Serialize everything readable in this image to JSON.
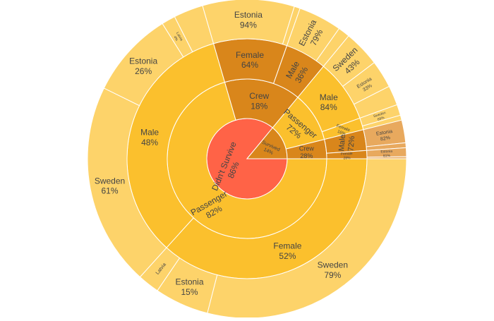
{
  "chart_data": {
    "type": "sunburst",
    "title": "",
    "colors": {
      "root_didnt_survive": "#ff6347",
      "didnt_survive": "#fbc02d",
      "didnt_survive_light": "#fdd36a",
      "survived": "#d9861b",
      "survived_light": "#e8a95e",
      "survived_lighter": "#f0c18f",
      "border": "#ffffff"
    },
    "levels": [
      {
        "level": 0,
        "nodes": [
          {
            "id": "didnt",
            "label": "Didn't Survive",
            "percent": "86%",
            "start": 0.0,
            "end": 0.86
          },
          {
            "id": "surv",
            "label": "Survived",
            "percent": "14%",
            "start": 0.86,
            "end": 1.0
          }
        ]
      },
      {
        "level": 1,
        "nodes": [
          {
            "id": "d-pass",
            "parent": "didnt",
            "label": "Passenger",
            "percent": "82%",
            "start": 0.0,
            "end": 0.705
          },
          {
            "id": "d-crew",
            "parent": "didnt",
            "label": "Crew",
            "percent": "18%",
            "start": 0.705,
            "end": 0.86
          },
          {
            "id": "s-pass",
            "parent": "surv",
            "label": "Passenger",
            "percent": "72%",
            "start": 0.86,
            "end": 0.961
          },
          {
            "id": "s-crew",
            "parent": "surv",
            "label": "Crew",
            "percent": "28%",
            "start": 0.961,
            "end": 1.0
          }
        ]
      },
      {
        "level": 2,
        "nodes": [
          {
            "id": "d-pass-f",
            "parent": "d-pass",
            "label": "Female",
            "percent": "52%",
            "start": 0.0,
            "end": 0.367
          },
          {
            "id": "d-pass-m",
            "parent": "d-pass",
            "label": "Male",
            "percent": "48%",
            "start": 0.367,
            "end": 0.705
          },
          {
            "id": "d-crew-f",
            "parent": "d-crew",
            "label": "Female",
            "percent": "64%",
            "start": 0.705,
            "end": 0.804
          },
          {
            "id": "d-crew-m",
            "parent": "d-crew",
            "label": "Male",
            "percent": "36%",
            "start": 0.804,
            "end": 0.86
          },
          {
            "id": "s-pass-m",
            "parent": "s-pass",
            "label": "Male",
            "percent": "84%",
            "start": 0.86,
            "end": 0.945
          },
          {
            "id": "s-pass-f",
            "parent": "s-pass",
            "label": "Female",
            "percent": "16%",
            "start": 0.945,
            "end": 0.961
          },
          {
            "id": "s-crew-m",
            "parent": "s-crew",
            "label": "Male",
            "percent": "72%",
            "start": 0.961,
            "end": 0.989
          },
          {
            "id": "s-crew-f",
            "parent": "s-crew",
            "label": "Female",
            "percent": "28%",
            "start": 0.989,
            "end": 1.0
          }
        ]
      },
      {
        "level": 3,
        "nodes": [
          {
            "id": "d-pf-swe",
            "parent": "d-pass-f",
            "label": "Sweden",
            "percent": "79%",
            "start": 0.0,
            "end": 0.29
          },
          {
            "id": "d-pf-est",
            "parent": "d-pass-f",
            "label": "Estonia",
            "percent": "15%",
            "start": 0.29,
            "end": 0.345
          },
          {
            "id": "d-pf-oth",
            "parent": "d-pass-f",
            "label": "Latvia",
            "percent": "",
            "start": 0.345,
            "end": 0.367
          },
          {
            "id": "d-pm-swe",
            "parent": "d-pass-m",
            "label": "Sweden",
            "percent": "61%",
            "start": 0.367,
            "end": 0.573
          },
          {
            "id": "d-pm-est",
            "parent": "d-pass-m",
            "label": "Estonia",
            "percent": "26%",
            "start": 0.573,
            "end": 0.661
          },
          {
            "id": "d-pm-lat",
            "parent": "d-pass-m",
            "label": "Latvia",
            "percent": "4%",
            "start": 0.661,
            "end": 0.675
          },
          {
            "id": "d-pm-oth",
            "parent": "d-pass-m",
            "label": "",
            "percent": "",
            "start": 0.675,
            "end": 0.705
          },
          {
            "id": "d-cf-est",
            "parent": "d-crew-f",
            "label": "Estonia",
            "percent": "94%",
            "start": 0.705,
            "end": 0.798
          },
          {
            "id": "d-cf-oth",
            "parent": "d-crew-f",
            "label": "",
            "percent": "",
            "start": 0.798,
            "end": 0.804
          },
          {
            "id": "d-cm-est",
            "parent": "d-crew-m",
            "label": "Estonia",
            "percent": "79%",
            "start": 0.804,
            "end": 0.848
          },
          {
            "id": "d-cm-oth",
            "parent": "d-crew-m",
            "label": "",
            "percent": "",
            "start": 0.848,
            "end": 0.86
          },
          {
            "id": "s-pm-swe",
            "parent": "s-pass-m",
            "label": "Sweden",
            "percent": "43%",
            "start": 0.86,
            "end": 0.897
          },
          {
            "id": "s-pm-est",
            "parent": "s-pass-m",
            "label": "Estonia",
            "percent": "33%",
            "start": 0.897,
            "end": 0.925
          },
          {
            "id": "s-pm-oth",
            "parent": "s-pass-m",
            "label": "",
            "percent": "",
            "start": 0.925,
            "end": 0.945
          },
          {
            "id": "s-pf-swe",
            "parent": "s-pass-f",
            "label": "Sweden",
            "percent": "69%",
            "start": 0.945,
            "end": 0.956
          },
          {
            "id": "s-pf-oth",
            "parent": "s-pass-f",
            "label": "",
            "percent": "",
            "start": 0.956,
            "end": 0.961
          },
          {
            "id": "s-cm-est",
            "parent": "s-crew-m",
            "label": "Estonia",
            "percent": "82%",
            "start": 0.961,
            "end": 0.984
          },
          {
            "id": "s-cm-oth",
            "parent": "s-crew-m",
            "label": "",
            "percent": "",
            "start": 0.984,
            "end": 0.989
          },
          {
            "id": "s-cf-est",
            "parent": "s-crew-f",
            "label": "Estonia",
            "percent": "81%",
            "start": 0.989,
            "end": 0.998
          },
          {
            "id": "s-cf-oth",
            "parent": "s-crew-f",
            "label": "",
            "percent": "",
            "start": 0.998,
            "end": 1.0
          }
        ]
      }
    ]
  }
}
